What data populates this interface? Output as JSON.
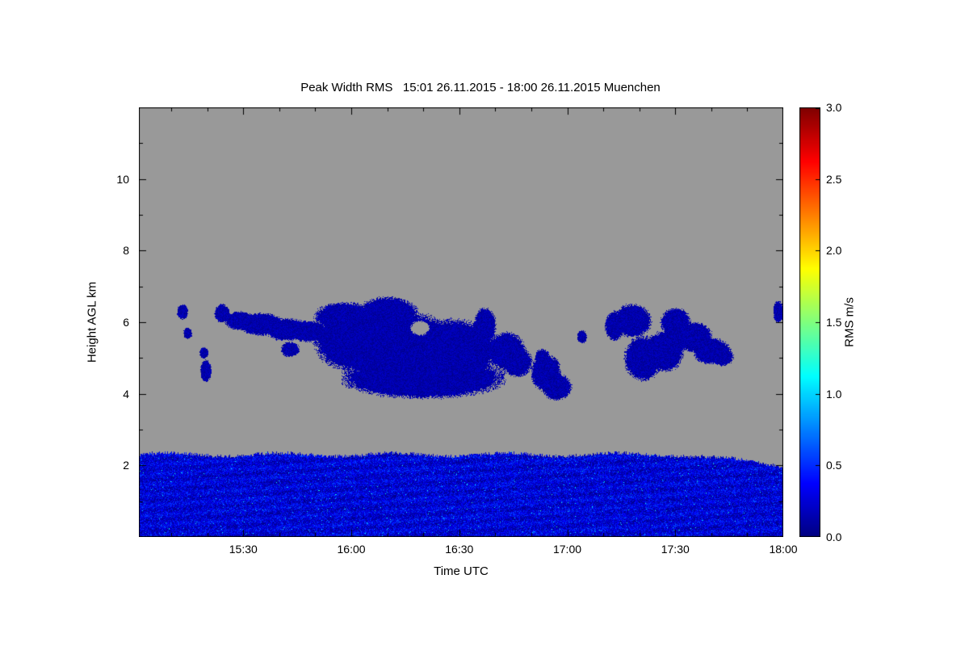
{
  "chart_data": {
    "type": "heatmap",
    "title": "Peak Width RMS   15:01 26.11.2015 - 18:00 26.11.2015 Muenchen",
    "xlabel": "Time UTC",
    "ylabel": "Height AGL km",
    "time_start": "15:01 26.11.2015",
    "time_end": "18:00 26.11.2015",
    "station": "Muenchen",
    "x_range_minutes_after_1500": [
      1,
      180
    ],
    "y_range_km": [
      0,
      12
    ],
    "x_ticks": [
      {
        "label": "15:30",
        "minutes": 30
      },
      {
        "label": "16:00",
        "minutes": 60
      },
      {
        "label": "16:30",
        "minutes": 90
      },
      {
        "label": "17:00",
        "minutes": 120
      },
      {
        "label": "17:30",
        "minutes": 150
      },
      {
        "label": "18:00",
        "minutes": 180
      }
    ],
    "y_ticks": [
      {
        "label": "2",
        "km": 2
      },
      {
        "label": "4",
        "km": 4
      },
      {
        "label": "6",
        "km": 6
      },
      {
        "label": "8",
        "km": 8
      },
      {
        "label": "10",
        "km": 10
      }
    ],
    "colorbar": {
      "label": "RMS m/s",
      "range": [
        0,
        3
      ],
      "colormap": "jet",
      "ticks": [
        {
          "label": "0.0",
          "value": 0.0
        },
        {
          "label": "0.5",
          "value": 0.5
        },
        {
          "label": "1.0",
          "value": 1.0
        },
        {
          "label": "1.5",
          "value": 1.5
        },
        {
          "label": "2.0",
          "value": 2.0
        },
        {
          "label": "2.5",
          "value": 2.5
        },
        {
          "label": "3.0",
          "value": 3.0
        }
      ]
    },
    "background_no_data_color": "#999999",
    "layers": {
      "boundary_layer": {
        "description": "Continuous low-level echo band across entire time range",
        "top_height_km": 2.3,
        "bottom_height_km": 0,
        "rms_typical_m_s": [
          0.0,
          0.6
        ]
      },
      "cloud_layer": {
        "description": "Mid-level cloud echoes between about 3.9 and 6.5 km from ~15:13 to ~17:50, very low RMS (dark blue)",
        "rms_typical_m_s": [
          0.0,
          0.3
        ],
        "blobs": [
          {
            "t": 13,
            "h": 6.3,
            "rt": 1.5,
            "rh": 0.2
          },
          {
            "t": 14.5,
            "h": 5.7,
            "rt": 1.2,
            "rh": 0.15
          },
          {
            "t": 19,
            "h": 5.15,
            "rt": 1.2,
            "rh": 0.15
          },
          {
            "t": 19.5,
            "h": 4.65,
            "rt": 1.5,
            "rh": 0.3
          },
          {
            "t": 24,
            "h": 6.25,
            "rt": 2,
            "rh": 0.25
          },
          {
            "t": 29,
            "h": 6.05,
            "rt": 4,
            "rh": 0.25
          },
          {
            "t": 35,
            "h": 5.95,
            "rt": 6,
            "rh": 0.3
          },
          {
            "t": 42,
            "h": 5.8,
            "rt": 6,
            "rh": 0.3
          },
          {
            "t": 48,
            "h": 5.75,
            "rt": 5,
            "rh": 0.28
          },
          {
            "t": 43,
            "h": 5.25,
            "rt": 2.5,
            "rh": 0.2
          },
          {
            "t": 58,
            "h": 6.15,
            "rt": 8,
            "rh": 0.4
          },
          {
            "t": 70,
            "h": 6.25,
            "rt": 8,
            "rh": 0.45
          },
          {
            "t": 62,
            "h": 5.5,
            "rt": 12,
            "rh": 0.85
          },
          {
            "t": 75,
            "h": 5.3,
            "rt": 14,
            "rh": 0.95
          },
          {
            "t": 88,
            "h": 5.2,
            "rt": 12,
            "rh": 0.85
          },
          {
            "t": 80,
            "h": 4.45,
            "rt": 22,
            "rh": 0.55
          },
          {
            "t": 97,
            "h": 5.9,
            "rt": 3,
            "rh": 0.5
          },
          {
            "t": 103,
            "h": 5.2,
            "rt": 5,
            "rh": 0.5
          },
          {
            "t": 106,
            "h": 4.9,
            "rt": 4,
            "rh": 0.4
          },
          {
            "t": 113,
            "h": 5.0,
            "rt": 2,
            "rh": 0.25
          },
          {
            "t": 114,
            "h": 4.6,
            "rt": 4,
            "rh": 0.5
          },
          {
            "t": 117,
            "h": 4.2,
            "rt": 4,
            "rh": 0.35
          },
          {
            "t": 124,
            "h": 5.6,
            "rt": 1.3,
            "rh": 0.18
          },
          {
            "t": 133,
            "h": 5.9,
            "rt": 2.5,
            "rh": 0.4
          },
          {
            "t": 138,
            "h": 6.05,
            "rt": 5,
            "rh": 0.45
          },
          {
            "t": 141,
            "h": 5.0,
            "rt": 5,
            "rh": 0.6
          },
          {
            "t": 147,
            "h": 5.2,
            "rt": 5,
            "rh": 0.55
          },
          {
            "t": 150,
            "h": 6.0,
            "rt": 4,
            "rh": 0.4
          },
          {
            "t": 155,
            "h": 5.6,
            "rt": 5,
            "rh": 0.4
          },
          {
            "t": 160,
            "h": 5.2,
            "rt": 5,
            "rh": 0.35
          },
          {
            "t": 163,
            "h": 5.05,
            "rt": 3,
            "rh": 0.25
          },
          {
            "t": 178.5,
            "h": 6.3,
            "rt": 1.3,
            "rh": 0.3
          }
        ],
        "holes": [
          {
            "t": 79,
            "h": 5.85,
            "rt": 2.5,
            "rh": 0.2
          }
        ]
      }
    }
  }
}
